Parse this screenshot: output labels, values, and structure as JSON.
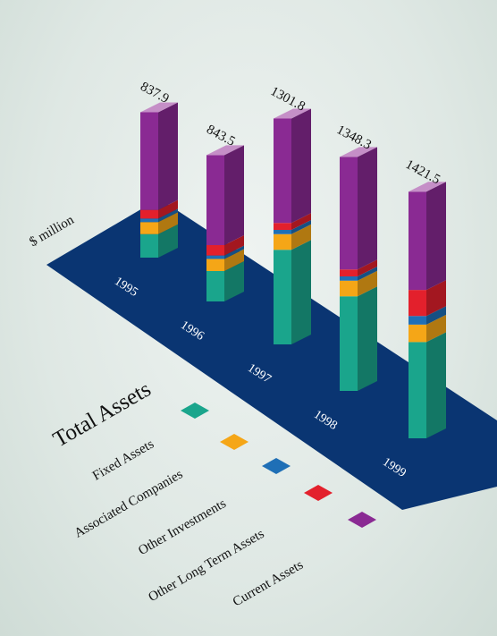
{
  "chart_data": {
    "type": "bar",
    "stacked": true,
    "title": "Total Assets",
    "ylabel": "$ million",
    "categories": [
      "1995",
      "1996",
      "1997",
      "1998",
      "1999"
    ],
    "totals": [
      837.9,
      843.5,
      1301.8,
      1348.3,
      1421.5
    ],
    "series": [
      {
        "name": "Fixed Assets",
        "color": "#1aa58c",
        "values": [
          135,
          175,
          545,
          545,
          555
        ]
      },
      {
        "name": "Associated Companies",
        "color": "#f5a617",
        "values": [
          70,
          70,
          90,
          90,
          100
        ]
      },
      {
        "name": "Other Investments",
        "color": "#1f6fb6",
        "values": [
          20,
          20,
          25,
          25,
          50
        ]
      },
      {
        "name": "Other Long Term Assets",
        "color": "#e3202c",
        "values": [
          50,
          60,
          40,
          40,
          150
        ]
      },
      {
        "name": "Current Assets",
        "color": "#8a2a93",
        "values": [
          562.9,
          518.5,
          601.8,
          648.3,
          566.5
        ]
      }
    ],
    "top_cap_color": "#c58fc7",
    "base_color": "#0a3572",
    "legend_placement": "bottom-left"
  }
}
